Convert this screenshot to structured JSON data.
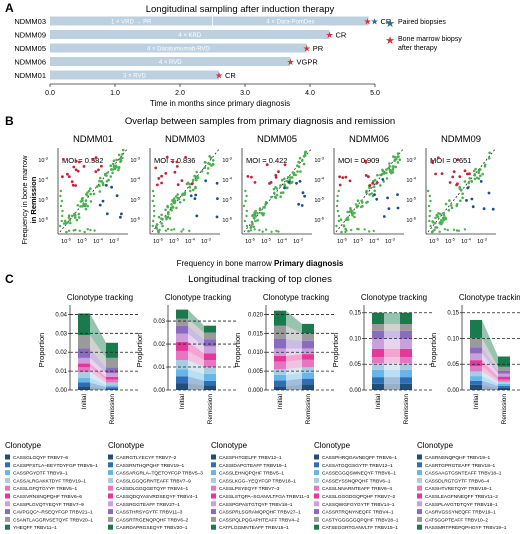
{
  "panel_a": {
    "letter": "A",
    "title": "Longitudinal sampling after induction therapy",
    "xlabel": "Time in months since primary diagnosis",
    "legend": {
      "paired": "Paired biopsies",
      "bm1": "Bone marrow biopsy",
      "bm2": "after therapy"
    }
  },
  "panel_b": {
    "letter": "B",
    "title": "Overlap between samples from primary diagnosis and remission",
    "xlabel_a": "Frequency in bone marrow ",
    "xlabel_b": "Primary diagnosis",
    "ylabel_a": "Frequency in bone marrow",
    "ylabel_b": "in Remission",
    "moi_prefix": "MOI = ",
    "tick_texts": [
      "10",
      "10",
      "10",
      "10",
      "10"
    ]
  },
  "panel_c": {
    "letter": "C",
    "title": "Longitudinal tracking of top clones",
    "subtitle": "Clonotype tracking",
    "ylabel": "Proportion",
    "x_initial": "Initial",
    "x_remission": "Remission",
    "legend_title": "Clonotype"
  },
  "chart_data": [
    {
      "type": "bar",
      "orientation": "horizontal",
      "title": "Longitudinal sampling after induction therapy",
      "xlabel": "Time in months since primary diagnosis",
      "xlim": [
        0,
        5
      ],
      "xticks": [
        "0.0",
        "1.0",
        "2.0",
        "3.0",
        "4.0",
        "5.0"
      ],
      "categories": [
        "NDMM03",
        "NDMM09",
        "NDMM05",
        "NDMM06",
        "NDMM01"
      ],
      "values": [
        4.9,
        4.3,
        3.95,
        3.7,
        2.6
      ],
      "response": [
        "CR",
        "CR",
        "PR",
        "VGPR",
        "CR"
      ],
      "segments": [
        [
          {
            "label": "1 × VRD → PR",
            "end": 2.5
          },
          {
            "label": "4 × Dara-PomDex",
            "end": 4.9
          }
        ],
        [
          {
            "label": "4 × KRD",
            "end": 4.3
          }
        ],
        [
          {
            "label": "4 × Daratumumab-RVD",
            "end": 3.95
          }
        ],
        [
          {
            "label": "4 × RVD",
            "end": 3.7
          }
        ],
        [
          {
            "label": "3 × RVD",
            "end": 2.6
          }
        ]
      ],
      "colors": {
        "bar": "#bcd0e0",
        "star_paired": "#2a6a9a",
        "star_bm": "#d9323a"
      }
    },
    {
      "type": "scatter",
      "title": "Overlap between samples from primary diagnosis and remission",
      "xlabel": "Frequency in bone marrow Primary diagnosis",
      "ylabel": "Frequency in bone marrow in Remission",
      "scale": "log",
      "tick_exponents": [
        "-3",
        "-4",
        "-5",
        "-6"
      ],
      "series": [
        {
          "name": "NDMM01",
          "moi": "0.582"
        },
        {
          "name": "NDMM03",
          "moi": "0.836"
        },
        {
          "name": "NDMM05",
          "moi": "0.422"
        },
        {
          "name": "NDMM06",
          "moi": "0.909"
        },
        {
          "name": "NDMM09",
          "moi": "0.651"
        }
      ],
      "colors": {
        "shared": "#4caf50",
        "expanded": "#c0263a",
        "contracted": "#1f4f87"
      }
    },
    {
      "type": "area",
      "title": "Longitudinal tracking of top clones",
      "ylabel": "Proportion",
      "categories": [
        "Initial",
        "Remission"
      ],
      "plots": [
        {
          "yticks": [
            "0.00",
            "0.01",
            "0.02",
            "0.03",
            "0.04"
          ],
          "ymax": 0.045,
          "clonotypes": [
            "CASSGLGQYF TRBV7–6",
            "CASSPFSTLA–EEYTDYFGP TRBV5–1",
            "CASSPGYDTF TRBV9–1",
            "CASSALRGAKKTDYF TRBV19–1",
            "CASSLGFQTGYYF TRBV5–1",
            "CASSVRNSNQPQHF TRBV6–6",
            "CASSPLGVQTYEQYF TRBV7–9",
            "CAVPGQG*–RSEQYFGP TRBV21–1",
            "CSANTLAGGRVSETQYF TRBV20–1",
            "YHEQFF TRBV11–1"
          ],
          "initial": [
            0.002,
            0.002,
            0.0025,
            0.003,
            0.0025,
            0.002,
            0.003,
            0.005,
            0.007,
            0.0115
          ],
          "remission": [
            0.0005,
            0.001,
            0.001,
            0.0015,
            0.0015,
            0.0015,
            0.002,
            0.003,
            0.005,
            0.008
          ]
        },
        {
          "yticks": [
            "0.00",
            "0.01",
            "0.02",
            "0.03"
          ],
          "ymax": 0.037,
          "clonotypes": [
            "CASRGTLYECYF TRBV7–2",
            "CASSRNTHQPQHF TRBV19–1",
            "CASSARGRLA–TQETOYFGP TRBV5–3",
            "CASSLGGQGRNTEAFF TRBV7–9",
            "CASSDLGGQGETQYF TRBV4–1",
            "CASSQDQYASVRDSEQYF TRBV4–1",
            "CASSRGGTEAFF TRBV27–1",
            "CASSTHRSYGYTF TRBV11–3",
            "CASSRTRGENQPQHF TRBV6–2",
            "CASRDAPRGSEQYF TRBV20–1"
          ],
          "initial": [
            0.003,
            0.003,
            0.003,
            0.004,
            0.004,
            0.004,
            0.0035,
            0.0035,
            0.003,
            0.004
          ],
          "remission": [
            0.002,
            0.002,
            0.003,
            0.003,
            0.003,
            0.003,
            0.003,
            0.003,
            0.003,
            0.003
          ]
        },
        {
          "yticks": [
            "0.000",
            "0.005",
            "0.010",
            "0.015",
            "0.020"
          ],
          "ymax": 0.0225,
          "clonotypes": [
            "CASSFHTGELFF TRBV12–1",
            "CASSIDAPGTEAFF TRBV19–1",
            "CASSLEHNQPQHF TRBV5–1",
            "CASSLKGG–YEQYFGP TRBV18–1",
            "CASSLPSYEQYF TRBV7–3",
            "CASSLSTQPA–SGANVLTFGA TRBV11–3",
            "CASSPGPASTGTQYF TRBV18–1",
            "CASSPRLSGRAMQPQHF TRBV27–1",
            "CASSPQLPQGAPHTEAFF TRBV4–2",
            "CATFLGGMNTEAFF TRBV15–1"
          ],
          "initial": [
            0.001,
            0.0015,
            0.0015,
            0.0015,
            0.002,
            0.0015,
            0.002,
            0.0025,
            0.0035,
            0.004
          ],
          "remission": [
            0.0015,
            0.0015,
            0.0015,
            0.0015,
            0.002,
            0.0015,
            0.0015,
            0.002,
            0.002,
            0.0025
          ]
        },
        {
          "yticks": [
            "0.00",
            "0.05",
            "0.10",
            "0.15"
          ],
          "ymax": 0.165,
          "clonotypes": [
            "CASSPHRQGAVNEQFF TRBV6–1",
            "CASSATGQGSGYTF TRBV12–1",
            "CASSEGGQSWNEQYF TRBV6–1",
            "CASSEYSSNQPQHF TRBV6–1",
            "CASSLNNARNTEAFF TRBV6–4",
            "CASSLGGGDGQPQHF TRBV7–2",
            "CASSQWGFGYGYTF TRBV14–1",
            "CASSRTRQNYNEQFF TRBV4–1",
            "CASTYGGGGGQPQHF TRBV28–1",
            "CATSEGGRTGANVLTF TRBV15–1"
          ],
          "initial": [
            0.012,
            0.013,
            0.014,
            0.013,
            0.012,
            0.016,
            0.02,
            0.015,
            0.013,
            0.022
          ],
          "remission": [
            0.012,
            0.013,
            0.014,
            0.013,
            0.012,
            0.016,
            0.02,
            0.015,
            0.013,
            0.022
          ]
        },
        {
          "yticks": [
            "0.00",
            "0.05",
            "0.10",
            "0.15"
          ],
          "ymax": 0.165,
          "clonotypes": [
            "CASRNSNQPQHF TRBV19–1",
            "CASRTGPRGTEAFF TRBV18–1",
            "CASSAAGTGSNTEAFF TRBV18–1",
            "CASSDLRGTGYTF TRBV6–4",
            "CASSHTVRETQYF TRBV19–1",
            "CASSLEAGFNNEQFF TRBV11–2",
            "CASSPLAVGTDTQYF TRBV18–1",
            "CASRVGSSYNEQFF TRBV19–1",
            "CATSGGPTEAFF TRBV10–2",
            "RASSMRTPREPQPHGYF TRBV19–1"
          ],
          "initial": [
            0.01,
            0.008,
            0.009,
            0.009,
            0.01,
            0.012,
            0.013,
            0.012,
            0.018,
            0.035
          ],
          "remission": [
            0.004,
            0.004,
            0.004,
            0.004,
            0.004,
            0.006,
            0.006,
            0.005,
            0.008,
            0.02
          ]
        }
      ],
      "colors": [
        "#1f4e79",
        "#2f6db5",
        "#64b7e8",
        "#a6cee3",
        "#e377c2",
        "#e6369a",
        "#c9a0dc",
        "#8a6bbe",
        "#9a9a9a",
        "#1b7a4d"
      ]
    }
  ]
}
